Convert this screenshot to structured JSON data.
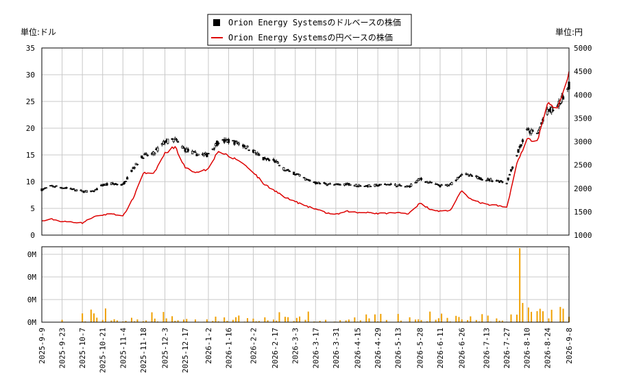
{
  "legend": {
    "usd_series": "Orion Energy Systemsのドルベースの株価",
    "jpy_series": "Orion Energy Systemsの円ベースの株価"
  },
  "units": {
    "left": "単位:ドル",
    "right": "単位:円"
  },
  "colors": {
    "candle": "#000000",
    "jpy_line": "#dd0000",
    "volume": "#f0a000",
    "grid": "#c8c8c8"
  },
  "chart_data": [
    {
      "type": "line",
      "name": "price",
      "series": [
        {
          "name": "Orion Energy Systemsのドルベースの株価",
          "axis": "left",
          "points": [
            [
              "2025-09-09",
              8.5
            ],
            [
              "2025-09-16",
              9.2
            ],
            [
              "2025-09-23",
              8.9
            ],
            [
              "2025-09-30",
              8.6
            ],
            [
              "2025-10-07",
              8.2
            ],
            [
              "2025-10-14",
              8.1
            ],
            [
              "2025-10-21",
              9.3
            ],
            [
              "2025-10-28",
              9.6
            ],
            [
              "2025-11-04",
              9.4
            ],
            [
              "2025-11-11",
              12.5
            ],
            [
              "2025-11-18",
              14.8
            ],
            [
              "2025-11-25",
              15.2
            ],
            [
              "2025-12-03",
              17.5
            ],
            [
              "2025-12-10",
              17.8
            ],
            [
              "2025-12-17",
              16.0
            ],
            [
              "2025-12-24",
              15.2
            ],
            [
              "2026-01-01",
              15.0
            ],
            [
              "2026-01-09",
              17.5
            ],
            [
              "2026-01-16",
              17.6
            ],
            [
              "2026-01-23",
              17.2
            ],
            [
              "2026-02-02",
              15.8
            ],
            [
              "2026-02-09",
              14.2
            ],
            [
              "2026-02-17",
              13.8
            ],
            [
              "2026-02-24",
              12.2
            ],
            [
              "2026-03-03",
              11.5
            ],
            [
              "2026-03-10",
              10.5
            ],
            [
              "2026-03-17",
              9.8
            ],
            [
              "2026-03-24",
              9.6
            ],
            [
              "2026-03-31",
              9.4
            ],
            [
              "2026-04-08",
              9.6
            ],
            [
              "2026-04-15",
              9.3
            ],
            [
              "2026-04-22",
              9.2
            ],
            [
              "2026-04-29",
              9.3
            ],
            [
              "2026-05-06",
              9.5
            ],
            [
              "2026-05-13",
              9.3
            ],
            [
              "2026-05-20",
              9.0
            ],
            [
              "2026-05-28",
              10.5
            ],
            [
              "2026-06-04",
              9.8
            ],
            [
              "2026-06-11",
              9.2
            ],
            [
              "2026-06-18",
              9.4
            ],
            [
              "2026-06-26",
              11.5
            ],
            [
              "2026-07-03",
              11.0
            ],
            [
              "2026-07-13",
              10.4
            ],
            [
              "2026-07-20",
              10.2
            ],
            [
              "2026-07-27",
              9.8
            ],
            [
              "2026-08-03",
              15.0
            ],
            [
              "2026-08-10",
              19.5
            ],
            [
              "2026-08-17",
              19.0
            ],
            [
              "2026-08-24",
              23.0
            ],
            [
              "2026-08-31",
              24.0
            ],
            [
              "2026-09-08",
              28.0
            ]
          ]
        },
        {
          "name": "Orion Energy Systemsの円ベースの株価",
          "axis": "right",
          "points": [
            [
              "2025-09-09",
              1300
            ],
            [
              "2025-09-16",
              1340
            ],
            [
              "2025-09-23",
              1290
            ],
            [
              "2025-09-30",
              1280
            ],
            [
              "2025-10-07",
              1260
            ],
            [
              "2025-10-14",
              1380
            ],
            [
              "2025-10-21",
              1430
            ],
            [
              "2025-10-28",
              1460
            ],
            [
              "2025-11-04",
              1400
            ],
            [
              "2025-11-11",
              1780
            ],
            [
              "2025-11-18",
              2330
            ],
            [
              "2025-11-25",
              2300
            ],
            [
              "2025-12-03",
              2750
            ],
            [
              "2025-12-10",
              2900
            ],
            [
              "2025-12-17",
              2430
            ],
            [
              "2025-12-24",
              2350
            ],
            [
              "2026-01-01",
              2400
            ],
            [
              "2026-01-09",
              2800
            ],
            [
              "2026-01-16",
              2680
            ],
            [
              "2026-01-23",
              2600
            ],
            [
              "2026-02-02",
              2350
            ],
            [
              "2026-02-09",
              2100
            ],
            [
              "2026-02-17",
              1950
            ],
            [
              "2026-02-24",
              1800
            ],
            [
              "2026-03-03",
              1720
            ],
            [
              "2026-03-10",
              1620
            ],
            [
              "2026-03-17",
              1560
            ],
            [
              "2026-03-24",
              1480
            ],
            [
              "2026-03-31",
              1440
            ],
            [
              "2026-04-08",
              1510
            ],
            [
              "2026-04-15",
              1480
            ],
            [
              "2026-04-22",
              1490
            ],
            [
              "2026-04-29",
              1460
            ],
            [
              "2026-05-06",
              1470
            ],
            [
              "2026-05-13",
              1480
            ],
            [
              "2026-05-20",
              1460
            ],
            [
              "2026-05-28",
              1680
            ],
            [
              "2026-06-04",
              1560
            ],
            [
              "2026-06-11",
              1510
            ],
            [
              "2026-06-18",
              1530
            ],
            [
              "2026-06-26",
              1950
            ],
            [
              "2026-07-03",
              1750
            ],
            [
              "2026-07-13",
              1650
            ],
            [
              "2026-07-20",
              1630
            ],
            [
              "2026-07-27",
              1590
            ],
            [
              "2026-08-03",
              2520
            ],
            [
              "2026-08-10",
              3060
            ],
            [
              "2026-08-17",
              3000
            ],
            [
              "2026-08-24",
              3820
            ],
            [
              "2026-08-31",
              3690
            ],
            [
              "2026-09-08",
              4460
            ]
          ]
        }
      ],
      "left_axis": {
        "ylim": [
          0,
          35
        ],
        "ticks": [
          0,
          5,
          10,
          15,
          20,
          25,
          30,
          35
        ]
      },
      "right_axis": {
        "ylim": [
          1000,
          5000
        ],
        "ticks": [
          1000,
          1500,
          2000,
          2500,
          3000,
          3500,
          4000,
          4500,
          5000
        ]
      },
      "grid": true,
      "legend_position": "top-center"
    },
    {
      "type": "bar",
      "name": "volume",
      "y_tick_labels": [
        "0M",
        "0M",
        "0M",
        "0M"
      ],
      "grid": true
    }
  ],
  "x_axis": {
    "start": "2025-09-09",
    "end": "2026-09-08",
    "tick_labels": [
      "2025-9-9",
      "2025-9-23",
      "2025-10-7",
      "2025-10-21",
      "2025-11-4",
      "2025-11-18",
      "2025-12-3",
      "2025-12-17",
      "2026-1-2",
      "2026-1-16",
      "2026-2-2",
      "2026-2-17",
      "2026-3-3",
      "2026-3-17",
      "2026-3-31",
      "2026-4-15",
      "2026-4-29",
      "2026-5-13",
      "2026-5-28",
      "2026-6-11",
      "2026-6-26",
      "2026-7-13",
      "2026-7-27",
      "2026-8-10",
      "2026-8-24",
      "2026-9-8"
    ]
  }
}
